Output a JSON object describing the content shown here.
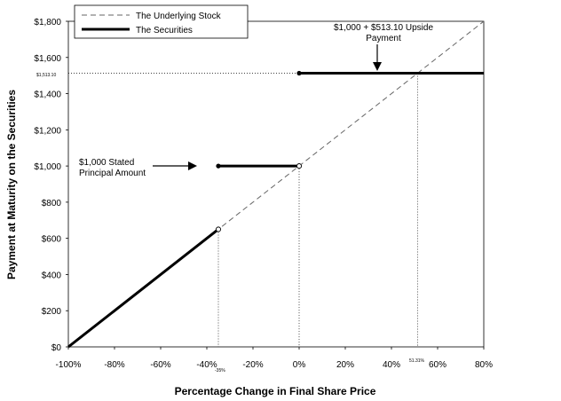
{
  "chart_data": {
    "type": "line",
    "xlabel": "Percentage Change in Final Share Price",
    "ylabel": "Payment at Maturity on the Securities",
    "xlim": [
      -100,
      80
    ],
    "ylim": [
      0,
      1800
    ],
    "x_ticks": [
      -100,
      -80,
      -60,
      -40,
      -20,
      0,
      20,
      40,
      60,
      80
    ],
    "x_tick_labels": [
      "-100%",
      "-80%",
      "-60%",
      "-40%",
      "-20%",
      "0%",
      "20%",
      "40%",
      "60%",
      "80%"
    ],
    "y_ticks": [
      0,
      200,
      400,
      600,
      800,
      1000,
      1200,
      1400,
      1600,
      1800
    ],
    "y_tick_labels": [
      "$0",
      "$200",
      "$400",
      "$600",
      "$800",
      "$1,000",
      "$1,200",
      "$1,400",
      "$1,600",
      "$1,800"
    ],
    "grid": false,
    "legend_position": "top-left",
    "series": [
      {
        "name": "The Underlying Stock",
        "style": "dashed",
        "x": [
          -100,
          80
        ],
        "y": [
          0,
          1800
        ]
      },
      {
        "name": "The Securities",
        "style": "solid",
        "segments": [
          {
            "x": [
              -100,
              -35
            ],
            "y": [
              0,
              650
            ]
          },
          {
            "x": [
              -35,
              0
            ],
            "y": [
              1000,
              1000
            ]
          },
          {
            "x": [
              0,
              80
            ],
            "y": [
              1513.1,
              1513.1
            ]
          }
        ]
      }
    ],
    "annotations": {
      "upside_lines": [
        "$1,000 + $513.10 Upside",
        "Payment"
      ],
      "principal_lines": [
        "$1,000 Stated",
        "Principal Amount"
      ],
      "small_y_label": "$1,513.10",
      "small_x_label_left": "-35%",
      "small_x_label_right": "51.31%"
    },
    "reference_points": {
      "barrier_x": -35,
      "cap_x": 51.31,
      "cap_y": 1513.1
    }
  }
}
